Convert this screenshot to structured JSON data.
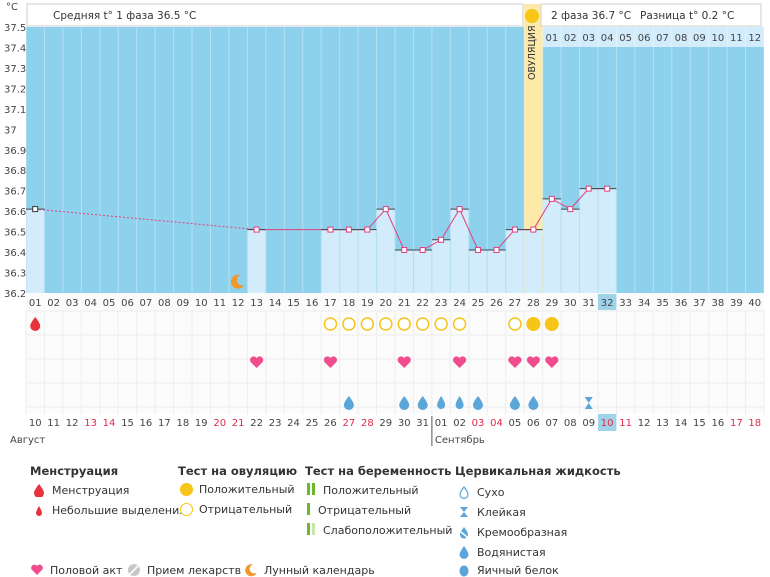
{
  "header": {
    "unit": "°C",
    "phase1": "Средняя t° 1 фаза 36.5 °C",
    "phase2": "2 фаза 36.7 °C",
    "diff": "Разница t° 0.2 °C",
    "ovulation": "ОВУЛЯЦИЯ"
  },
  "colors": {
    "chart_bg": "#8ed1ec",
    "bar": "#d2ecfb",
    "line": "#e0407e",
    "ovulation": "#fde9a8",
    "menses": "#e8323c",
    "heart": "#ef4d8d",
    "drop": "#5aa6d8",
    "test": "#f5c518",
    "today": "#9fd3ea"
  },
  "chart_data": {
    "type": "line",
    "ylim": [
      36.2,
      37.5
    ],
    "y_ticks": [
      "37.5",
      "37.4",
      "37.3",
      "37.2",
      "37.1",
      "37",
      "36.9",
      "36.8",
      "36.7",
      "36.6",
      "36.5",
      "36.4",
      "36.3",
      "36.2"
    ],
    "cycle_days": [
      "01",
      "02",
      "03",
      "04",
      "05",
      "06",
      "07",
      "08",
      "09",
      "10",
      "11",
      "12",
      "13",
      "14",
      "15",
      "16",
      "17",
      "18",
      "19",
      "20",
      "21",
      "22",
      "23",
      "24",
      "25",
      "26",
      "27",
      "28",
      "29",
      "30",
      "31",
      "32",
      "33",
      "34",
      "35",
      "36",
      "37",
      "38",
      "39",
      "40"
    ],
    "calendar_dates": [
      "10",
      "11",
      "12",
      "13",
      "14",
      "15",
      "16",
      "17",
      "18",
      "19",
      "20",
      "21",
      "22",
      "23",
      "24",
      "25",
      "26",
      "27",
      "28",
      "29",
      "30",
      "31",
      "01",
      "02",
      "03",
      "04",
      "05",
      "06",
      "07",
      "08",
      "09",
      "10",
      "11",
      "12",
      "13",
      "14",
      "15",
      "16",
      "17",
      "18"
    ],
    "calendar_red": [
      3,
      4,
      10,
      11,
      17,
      18,
      24,
      25,
      31,
      32,
      38,
      39
    ],
    "phase2_days": [
      "01",
      "02",
      "03",
      "04",
      "05",
      "06",
      "07",
      "08",
      "09",
      "10",
      "11",
      "12"
    ],
    "series": [
      {
        "points": [
          [
            1,
            36.61
          ],
          [
            13,
            36.51
          ],
          [
            17,
            36.51
          ],
          [
            18,
            36.51
          ],
          [
            19,
            36.51
          ],
          [
            20,
            36.61
          ],
          [
            21,
            36.41
          ],
          [
            22,
            36.41
          ],
          [
            23,
            36.46
          ],
          [
            24,
            36.61
          ],
          [
            25,
            36.41
          ],
          [
            26,
            36.41
          ],
          [
            27,
            36.51
          ],
          [
            28,
            36.51
          ],
          [
            29,
            36.66
          ],
          [
            30,
            36.61
          ],
          [
            31,
            36.71
          ],
          [
            32,
            36.71
          ]
        ]
      }
    ],
    "dashed_gap": [
      1,
      13
    ],
    "ovulation_day": 28,
    "today_day": 32,
    "moon_day": 12,
    "menses_days": [
      1
    ],
    "ov_test_negative": [
      17,
      18,
      19,
      20,
      21,
      22,
      23,
      24,
      27
    ],
    "ov_test_positive": [
      28,
      29
    ],
    "intercourse_days": [
      13,
      17,
      21,
      24,
      27,
      28,
      29
    ],
    "fluid_watery": [
      18,
      21,
      22,
      25,
      27,
      28
    ],
    "fluid_creamy": [
      23,
      24
    ],
    "fluid_sticky": [
      31
    ]
  },
  "months": {
    "first": "Август",
    "second": "Сентябрь"
  },
  "legend": {
    "menstruation": {
      "title": "Менструация",
      "heavy": "Менструация",
      "light": "Небольшие выделения"
    },
    "ovulation_test": {
      "title": "Тест на овуляцию",
      "pos": "Положительный",
      "neg": "Отрицательный"
    },
    "pregnancy_test": {
      "title": "Тест на беременность",
      "pos": "Положительный",
      "neg": "Отрицательный",
      "weak": "Слабоположительный"
    },
    "cervical": {
      "title": "Цервикальная жидкость",
      "dry": "Сухо",
      "sticky": "Клейкая",
      "creamy": "Кремообразная",
      "watery": "Водянистая",
      "eggwhite": "Яичный белок"
    },
    "other": {
      "intercourse": "Половой акт",
      "meds": "Прием лекарств",
      "lunar": "Лунный календарь"
    }
  }
}
